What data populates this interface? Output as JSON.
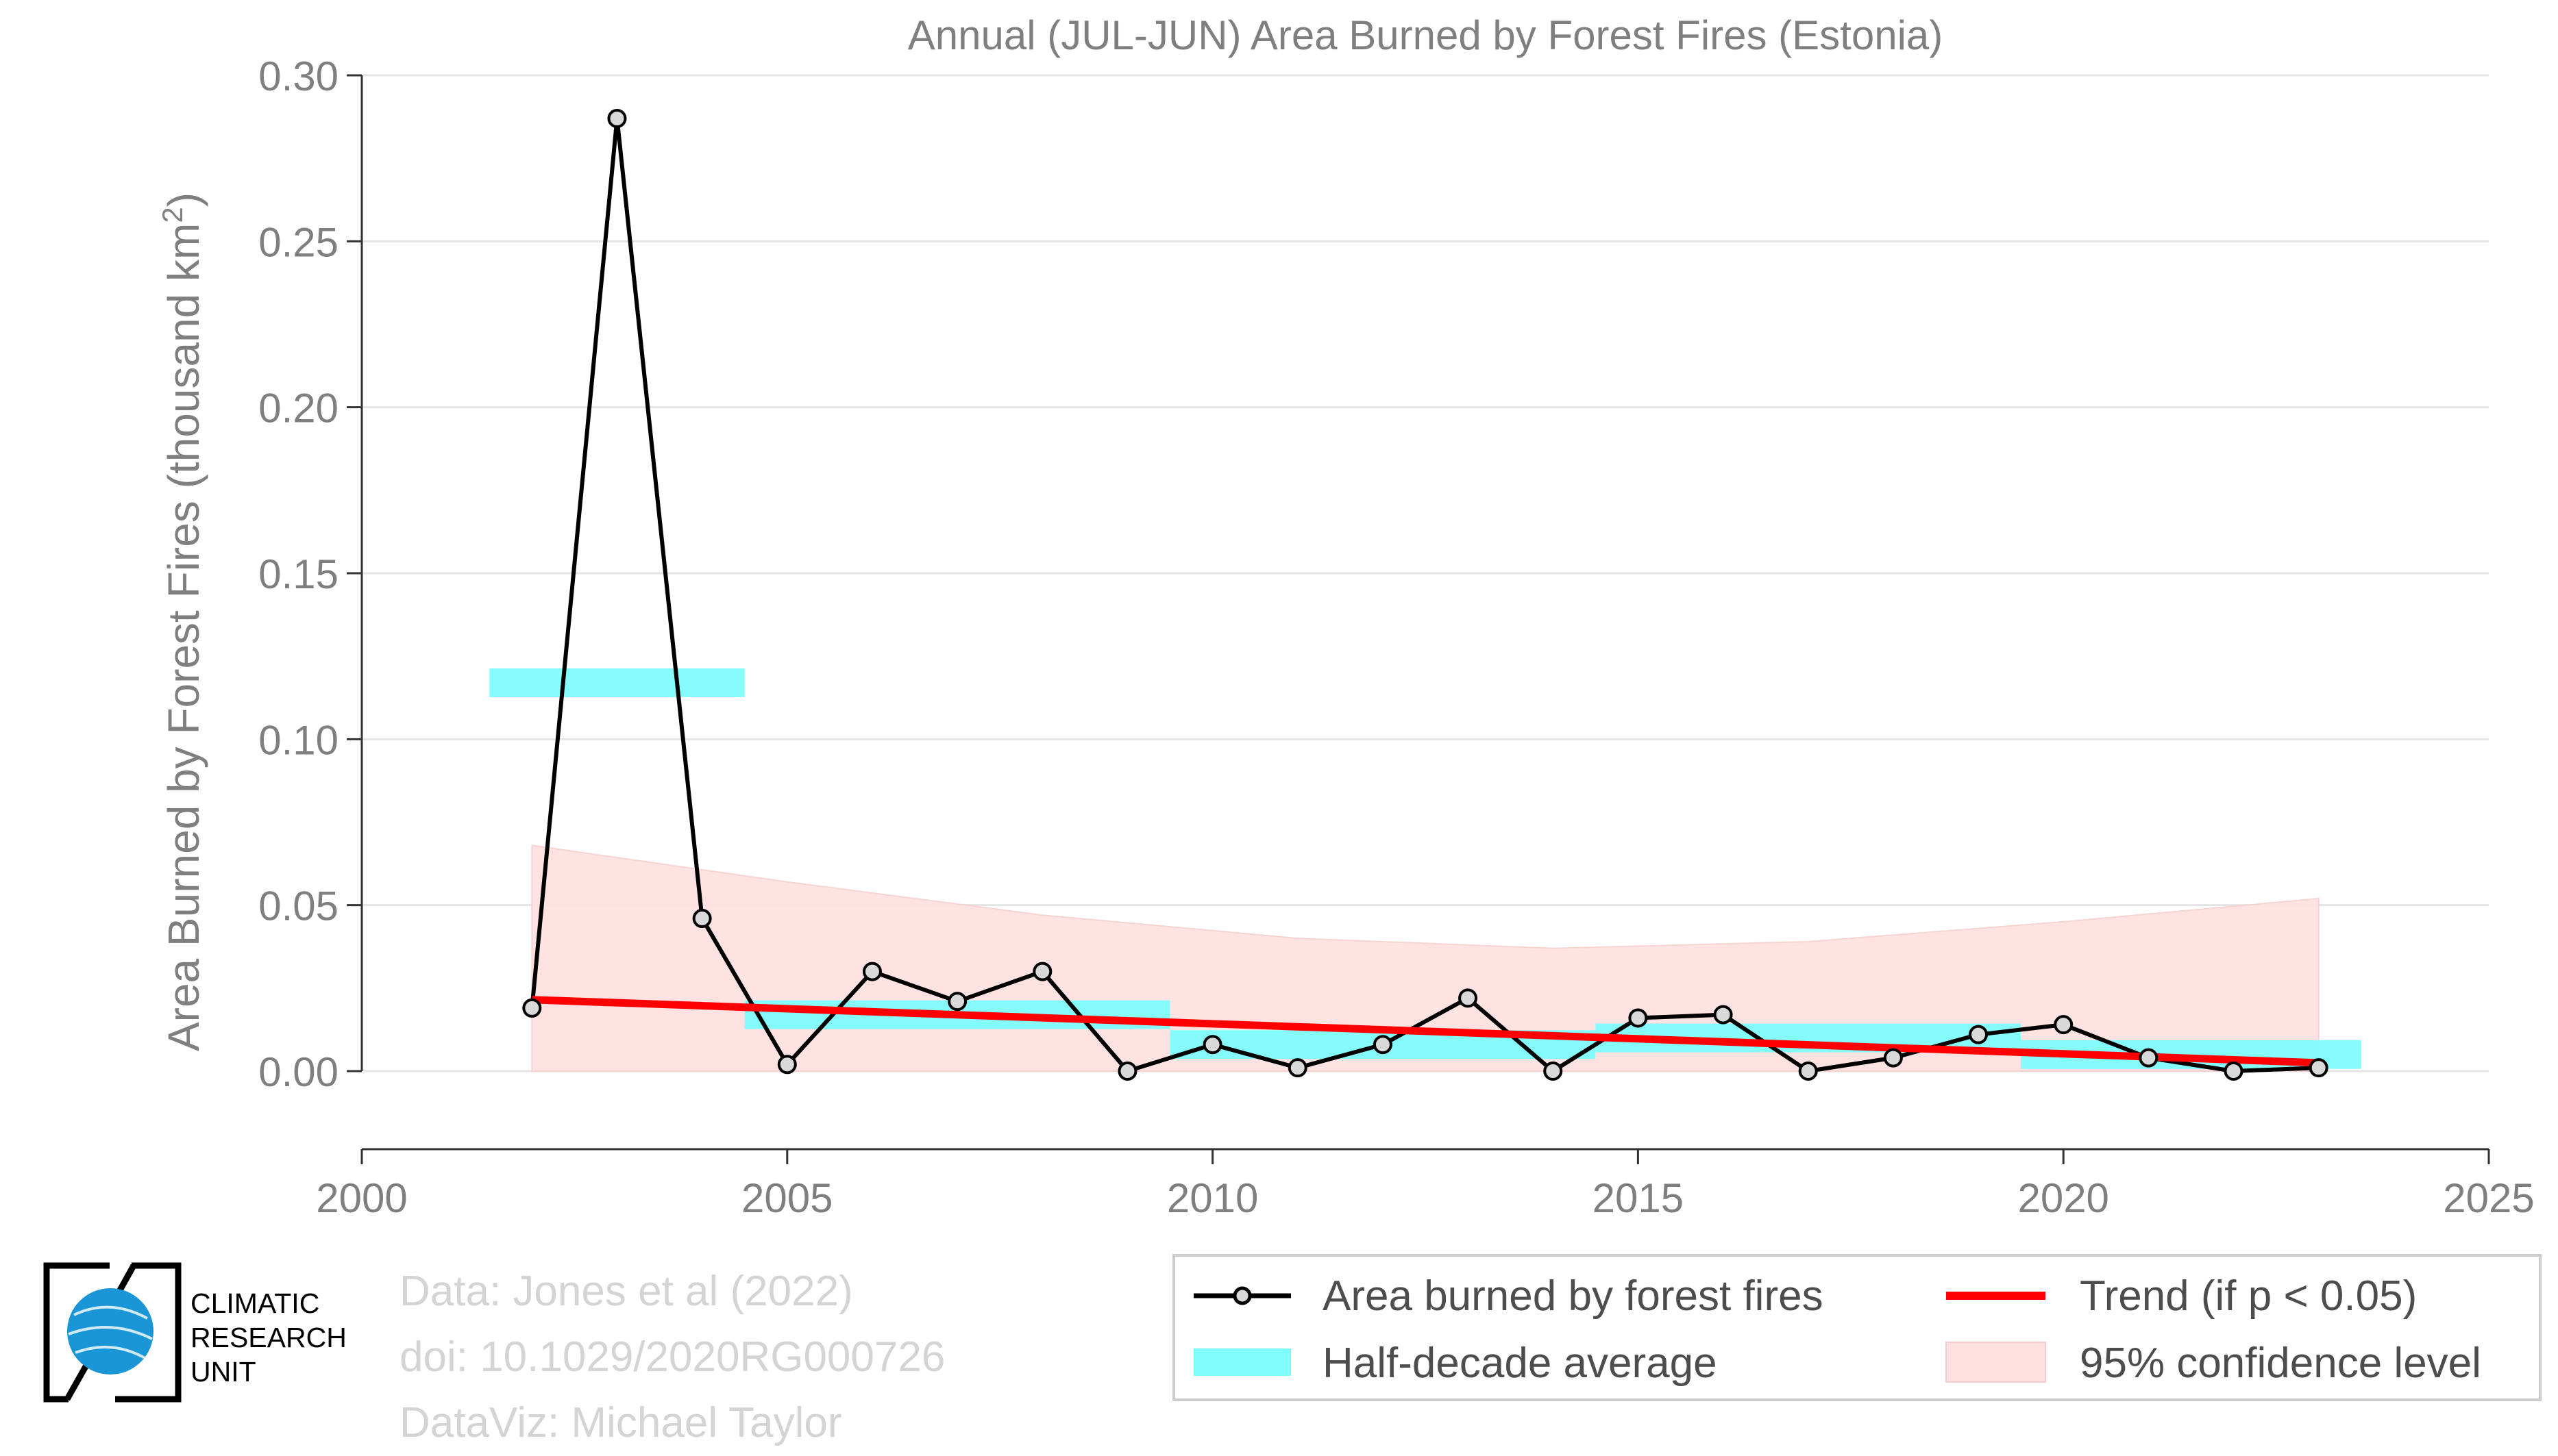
{
  "chart_data": {
    "type": "line",
    "title": "Annual (JUL-JUN) Area Burned by Forest Fires (Estonia)",
    "ylabel_prefix": "Area Burned by Forest Fires (thousand km",
    "ylabel_sup": "2",
    "ylabel_suffix": ")",
    "xlabel": "",
    "xlim": [
      2000,
      2025
    ],
    "ylim": [
      0.0,
      0.3
    ],
    "xticks": [
      2000,
      2005,
      2010,
      2015,
      2020,
      2025
    ],
    "yticks": [
      "0.00",
      "0.05",
      "0.10",
      "0.15",
      "0.20",
      "0.25",
      "0.30"
    ],
    "grid": "horizontal",
    "series": [
      {
        "name": "Area burned by forest fires",
        "color": "#000000",
        "x": [
          2002,
          2003,
          2004,
          2005,
          2006,
          2007,
          2008,
          2009,
          2010,
          2011,
          2012,
          2013,
          2014,
          2015,
          2016,
          2017,
          2018,
          2019,
          2020,
          2021,
          2022,
          2023
        ],
        "y": [
          0.019,
          0.287,
          0.046,
          0.002,
          0.03,
          0.021,
          0.03,
          0.0,
          0.008,
          0.001,
          0.008,
          0.022,
          0.0,
          0.016,
          0.017,
          0.0,
          0.004,
          0.011,
          0.014,
          0.004,
          0.0,
          0.001
        ]
      }
    ],
    "half_decade_average": {
      "name": "Half-decade average",
      "color": "#7ffcfc",
      "periods": [
        {
          "x0": 2001.5,
          "x1": 2004.5,
          "y": 0.117
        },
        {
          "x0": 2004.5,
          "x1": 2009.5,
          "y": 0.017
        },
        {
          "x0": 2009.5,
          "x1": 2014.5,
          "y": 0.008
        },
        {
          "x0": 2014.5,
          "x1": 2019.5,
          "y": 0.01
        },
        {
          "x0": 2019.5,
          "x1": 2023.5,
          "y": 0.005
        }
      ]
    },
    "trend": {
      "name": "Trend (if p < 0.05)",
      "color": "#ff0000",
      "x": [
        2002,
        2023
      ],
      "y": [
        0.0215,
        0.0025
      ]
    },
    "confidence": {
      "name": "95% confidence level",
      "color": "#ffe1e1",
      "x": [
        2002,
        2005,
        2008,
        2011,
        2014,
        2017,
        2020,
        2023
      ],
      "upper": [
        0.068,
        0.057,
        0.047,
        0.04,
        0.037,
        0.039,
        0.045,
        0.052
      ],
      "lower": [
        0.0,
        0.0,
        0.0,
        0.0,
        0.0,
        0.0,
        0.0,
        0.0
      ]
    },
    "legend": {
      "placement": "bottom-right",
      "entries": [
        "Area burned by forest fires",
        "Trend (if p < 0.05)",
        "Half-decade average",
        "95% confidence level"
      ]
    }
  },
  "logo": {
    "line1": "CLIMATIC",
    "line2": "RESEARCH",
    "line3": "UNIT"
  },
  "credits": {
    "data": "Data: Jones et al (2022)",
    "doi": "doi: 10.1029/2020RG000726",
    "dataviz": "DataViz: Michael Taylor"
  },
  "colors": {
    "axis_text": "#7f7f7f",
    "grid": "#e5e5e5",
    "credits": "#d4d4d4"
  }
}
